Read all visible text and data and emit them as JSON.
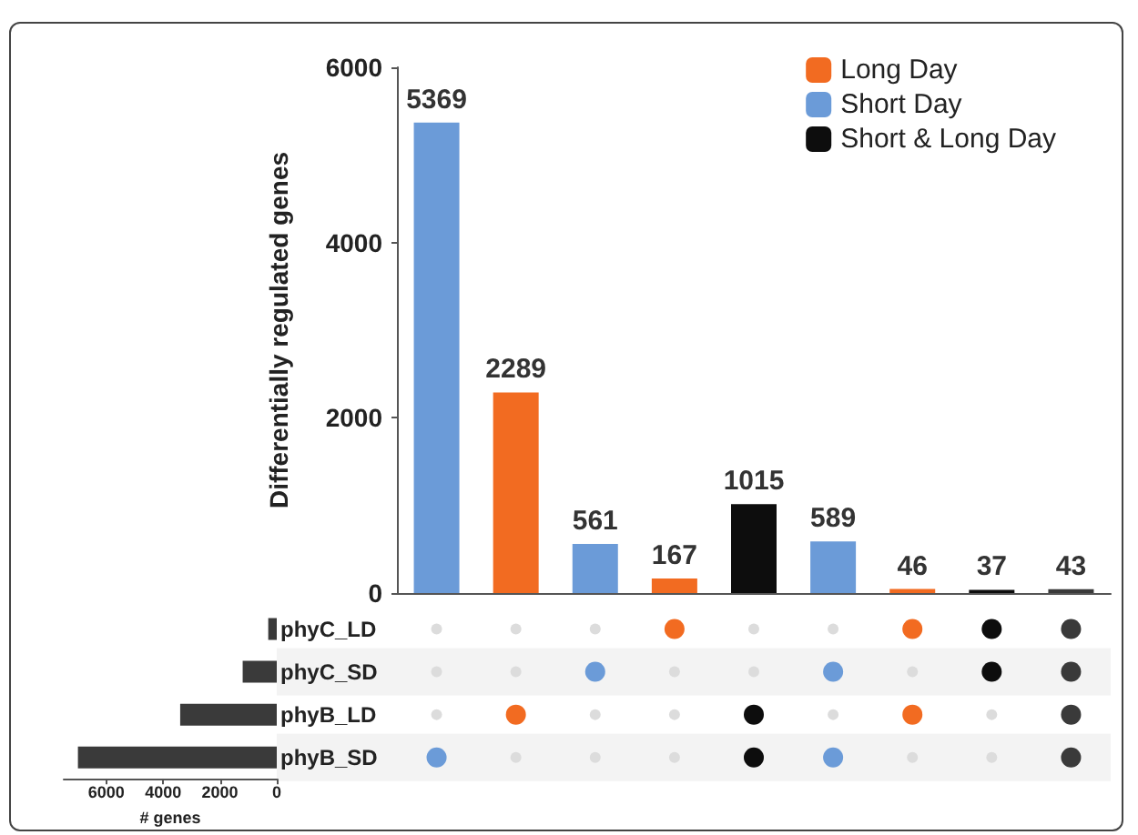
{
  "chart_data": [
    {
      "type": "bar",
      "ylabel": "Differentially regulated genes",
      "categories": [
        null,
        null,
        null,
        null,
        null,
        null,
        null,
        null,
        null
      ],
      "stacked": true,
      "ylim": [
        0,
        6000
      ],
      "yticks": [
        0,
        2000,
        4000,
        6000
      ],
      "grid": false,
      "legend": "top right",
      "data_labels": true,
      "series": [
        {
          "name": "Long Day",
          "color": "#f26b21",
          "values": [
            null,
            2289,
            null,
            167,
            null,
            null,
            46,
            null,
            null
          ]
        },
        {
          "name": "Short Day",
          "color": "#6b9bd8",
          "values": [
            5369,
            null,
            561,
            null,
            null,
            589,
            null,
            null,
            null
          ]
        },
        {
          "name": "Short & Long Day",
          "color": "#0d0d0d",
          "colors": [
            "#0d0d0d",
            "#0d0d0d",
            "#0d0d0d",
            "#0d0d0d",
            "#0d0d0d",
            "#0d0d0d",
            "#0d0d0d",
            "#0d0d0d",
            "#3a3a3a"
          ],
          "values": [
            null,
            null,
            null,
            null,
            1015,
            null,
            null,
            37,
            43
          ]
        }
      ]
    },
    {
      "type": "bar",
      "orientation": "horizontal",
      "xlabel": "# genes",
      "categories": [
        "phyC_LD",
        "phyC_SD",
        "phyB_LD",
        "phyB_SD"
      ],
      "values": [
        300,
        1200,
        3400,
        7000
      ],
      "color": "#3a3a3a",
      "xlim": [
        7500,
        0
      ],
      "xticks": [
        6000,
        4000,
        2000,
        0
      ],
      "grid": false
    }
  ]
}
